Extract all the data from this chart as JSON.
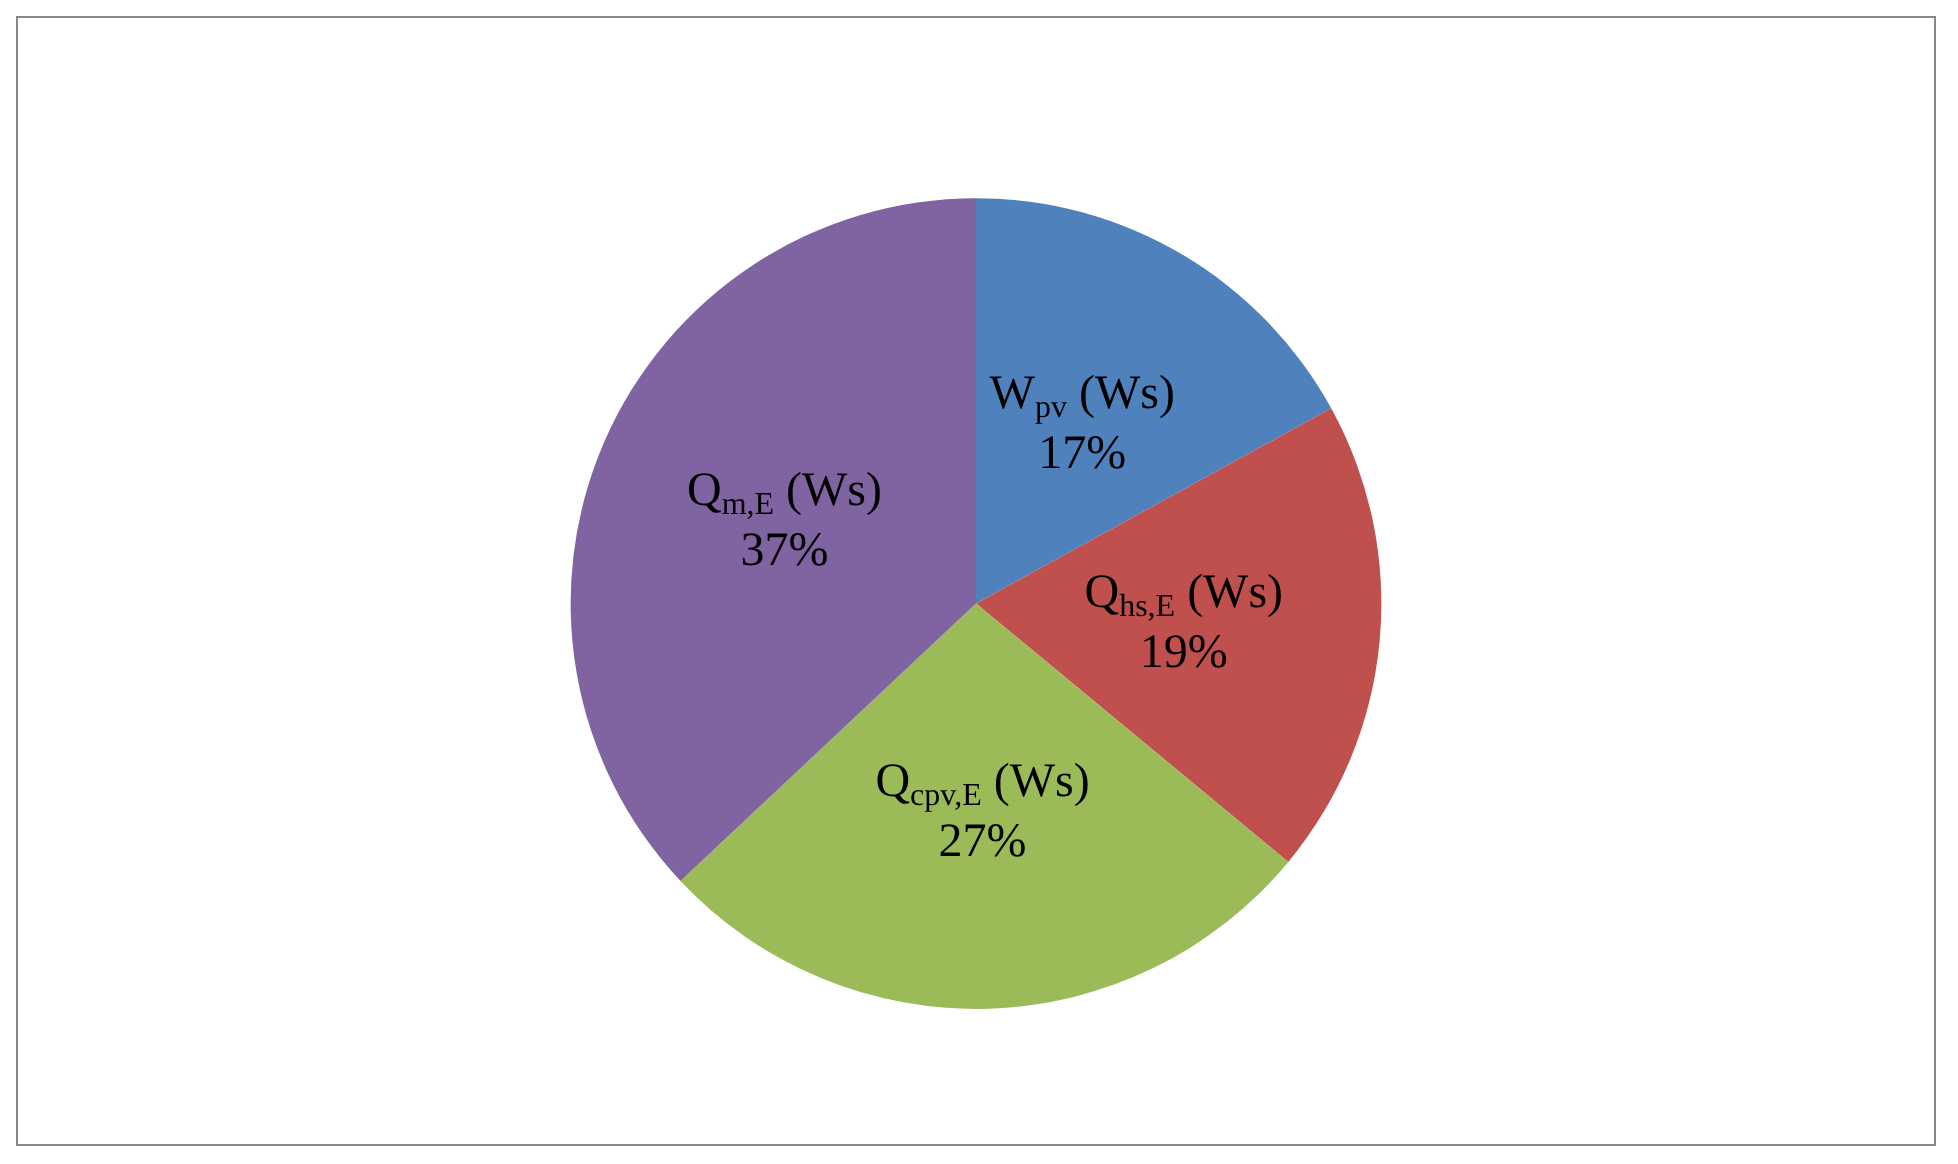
{
  "chart_data": {
    "type": "pie",
    "categories": [
      "W$_{pv}$ (Ws)",
      "Q$_{hs,E}$ (Ws)",
      "Q$_{cpv,E}$ (Ws)",
      "Q$_{m,E}$ (Ws)"
    ],
    "values": [
      17,
      19,
      27,
      37
    ],
    "colors": [
      "#4f81bd",
      "#c0504d",
      "#9bbb59",
      "#8064a2"
    ],
    "value_labels": [
      "17%",
      "19%",
      "27%",
      "37%"
    ],
    "legend": false
  }
}
